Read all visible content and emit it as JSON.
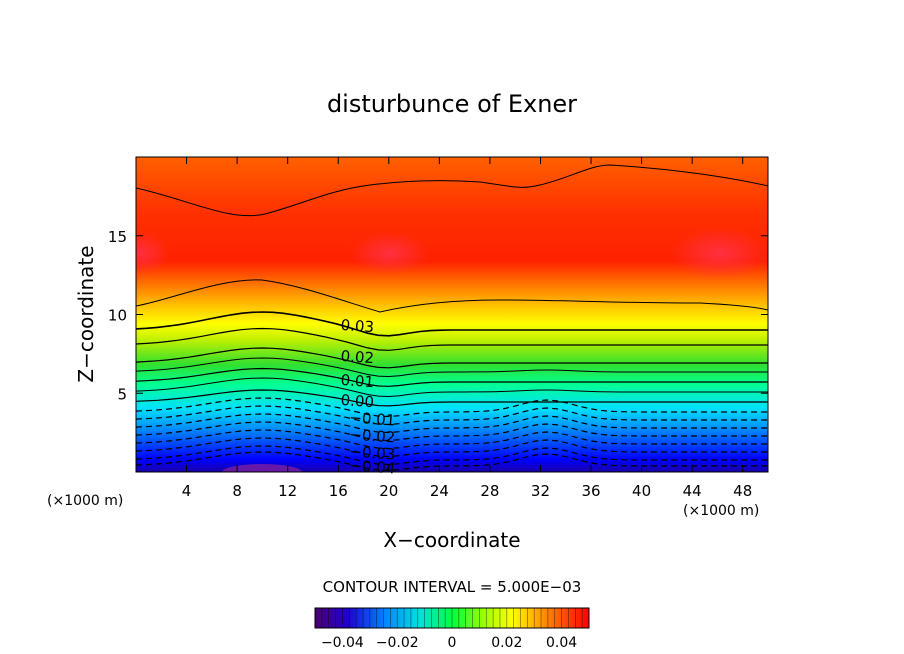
{
  "chart_data": {
    "type": "contour",
    "title": "disturbunce of Exner",
    "xlabel": "X−coordinate",
    "ylabel": "Z−coordinate",
    "x_unit_left": "(×1000 m)",
    "x_unit_right": "(×1000 m)",
    "x_ticks": [
      4,
      8,
      12,
      16,
      20,
      24,
      28,
      32,
      36,
      40,
      44,
      48
    ],
    "y_ticks": [
      5,
      10,
      15
    ],
    "xlim": [
      0,
      50
    ],
    "ylim": [
      0,
      20
    ],
    "contour_labels": [
      "0.03",
      "0.02",
      "0.01",
      "0.00",
      "−0.01",
      "−0.02",
      "−0.03",
      "−0.04"
    ],
    "contour_interval_text": "CONTOUR INTERVAL = 5.000E−03",
    "colorbar": {
      "range": [
        -0.05,
        0.05
      ],
      "tick_labels": [
        "−0.04",
        "−0.02",
        "0",
        "0.02",
        "0.04"
      ],
      "tick_values": [
        -0.04,
        -0.02,
        0,
        0.02,
        0.04
      ]
    },
    "grid": false
  }
}
